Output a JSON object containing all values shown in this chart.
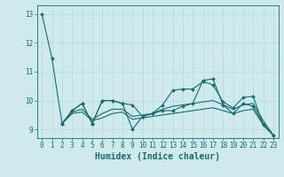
{
  "title": "",
  "xlabel": "Humidex (Indice chaleur)",
  "ylabel": "",
  "xlim": [
    -0.5,
    23.5
  ],
  "ylim": [
    8.7,
    13.3
  ],
  "yticks": [
    9,
    10,
    11,
    12,
    13
  ],
  "xticks": [
    0,
    1,
    2,
    3,
    4,
    5,
    6,
    7,
    8,
    9,
    10,
    11,
    12,
    13,
    14,
    15,
    16,
    17,
    18,
    19,
    20,
    21,
    22,
    23
  ],
  "bg_color": "#ceeaec",
  "grid_color": "#b8d8da",
  "line_color": "#1a6b6b",
  "lines": [
    {
      "x": [
        0,
        1,
        2,
        3,
        4,
        5,
        6,
        7,
        8,
        9,
        10,
        11,
        12,
        13,
        14,
        15,
        16,
        17,
        18,
        19,
        20,
        21,
        22,
        23
      ],
      "y": [
        13.0,
        11.45,
        9.2,
        9.65,
        9.9,
        9.2,
        10.0,
        10.0,
        9.9,
        9.85,
        9.45,
        9.55,
        9.65,
        9.65,
        9.8,
        9.9,
        10.7,
        10.75,
        9.85,
        9.55,
        9.9,
        9.8,
        9.2,
        8.8
      ],
      "marker": "D",
      "markersize": 2.0,
      "linewidth": 0.8
    },
    {
      "x": [
        2,
        3,
        4,
        5,
        6,
        7,
        8,
        9,
        10,
        11,
        12,
        13,
        14,
        15,
        16,
        17,
        18,
        19,
        20,
        21,
        22,
        23
      ],
      "y": [
        9.2,
        9.65,
        9.9,
        9.2,
        10.0,
        10.0,
        9.9,
        9.0,
        9.45,
        9.55,
        9.85,
        10.35,
        10.4,
        10.4,
        10.65,
        10.55,
        9.95,
        9.75,
        10.1,
        10.15,
        9.15,
        8.8
      ],
      "marker": "D",
      "markersize": 2.0,
      "linewidth": 0.8
    },
    {
      "x": [
        2,
        3,
        4,
        5,
        6,
        7,
        8,
        9,
        10,
        11,
        12,
        13,
        14,
        15,
        16,
        17,
        18,
        19,
        20,
        21,
        22,
        23
      ],
      "y": [
        9.2,
        9.6,
        9.7,
        9.35,
        9.55,
        9.7,
        9.7,
        9.45,
        9.5,
        9.55,
        9.7,
        9.8,
        9.85,
        9.9,
        9.95,
        10.0,
        9.85,
        9.7,
        9.85,
        9.9,
        9.3,
        8.8
      ],
      "marker": null,
      "markersize": 0,
      "linewidth": 0.8
    },
    {
      "x": [
        2,
        3,
        4,
        5,
        6,
        7,
        8,
        9,
        10,
        11,
        12,
        13,
        14,
        15,
        16,
        17,
        18,
        19,
        20,
        21,
        22,
        23
      ],
      "y": [
        9.2,
        9.55,
        9.6,
        9.3,
        9.4,
        9.55,
        9.6,
        9.35,
        9.4,
        9.45,
        9.5,
        9.55,
        9.6,
        9.65,
        9.7,
        9.75,
        9.65,
        9.55,
        9.65,
        9.7,
        9.15,
        8.8
      ],
      "marker": null,
      "markersize": 0,
      "linewidth": 0.8
    }
  ],
  "font_family": "monospace",
  "tick_fontsize": 5.5,
  "label_fontsize": 7.0
}
